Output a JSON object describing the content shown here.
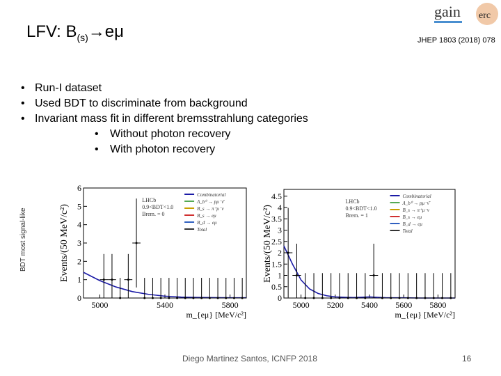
{
  "title": {
    "main": "LFV: B",
    "sub": "(s)",
    "arrow": "→",
    "rest": "eμ"
  },
  "logo": {
    "text_gain": "gain",
    "text_erc": "erc",
    "icon": "gain-erc-logo-icon"
  },
  "reference": "JHEP 1803 (2018) 078",
  "bullets": [
    "Run-I dataset",
    "Used BDT to discriminate from background",
    "Invariant mass fit in different bremsstrahlung categories"
  ],
  "sub_bullets": [
    "Without photon recovery",
    "With photon recovery"
  ],
  "side_label": "BDT most signal-like",
  "footer": "Diego Martinez Santos, ICNFP 2018",
  "page_number": "16",
  "chart_data": [
    {
      "type": "line",
      "xlabel": "m_{eμ} [MeV/c²]",
      "ylabel": "Events/(50 MeV/c²)",
      "xlim": [
        4900,
        5900
      ],
      "ylim": [
        0,
        6
      ],
      "xticks": [
        "5000",
        "5400",
        "5800"
      ],
      "yticks": [
        "0",
        "1",
        "2",
        "3",
        "4",
        "5",
        "6"
      ],
      "annotation": [
        "LHCb",
        "0.9<BDT<1.0",
        "Brem. = 0"
      ],
      "legend_entries": [
        "Combinatorial",
        "Λ_b⁰ → pμ⁻ν̄",
        "B_s → π⁺μ⁻ν",
        "B_s → eμ",
        "B_d → eμ",
        "Total"
      ],
      "legend_colors": [
        "#1a1aa6",
        "#55aa55",
        "#c8a000",
        "#d03030",
        "#3060c0",
        "#333333"
      ],
      "legend_position": "top-right",
      "points": {
        "x": [
          5000,
          5050,
          5100,
          5150,
          5200,
          5250,
          5300,
          5350,
          5400,
          5450,
          5500,
          5550,
          5600,
          5650,
          5700,
          5750,
          5800,
          5850
        ],
        "y": [
          1,
          1,
          0,
          1,
          3,
          0,
          0,
          0,
          0,
          0,
          0,
          0,
          0,
          0,
          0,
          0,
          0,
          0
        ]
      },
      "curve": {
        "x": [
          4900,
          5000,
          5100,
          5200,
          5300,
          5400,
          5500,
          5600,
          5700,
          5800,
          5900
        ],
        "y": [
          1.4,
          0.95,
          0.6,
          0.35,
          0.2,
          0.1,
          0.05,
          0.03,
          0.02,
          0.01,
          0.01
        ]
      }
    },
    {
      "type": "line",
      "xlabel": "m_{eμ} [MeV/c²]",
      "ylabel": "Events/(50 MeV/c²)",
      "xlim": [
        4900,
        5900
      ],
      "ylim": [
        0,
        4.8
      ],
      "xticks": [
        "5000",
        "5200",
        "5400",
        "5600",
        "5800"
      ],
      "yticks": [
        "0",
        "0.5",
        "1",
        "1.5",
        "2",
        "2.5",
        "3",
        "3.5",
        "4",
        "4.5"
      ],
      "annotation": [
        "LHCb",
        "0.9<BDT<1.0",
        "Brem. = 1"
      ],
      "legend_entries": [
        "Combinatorial",
        "Λ_b⁰ → pμ⁻ν̄",
        "B_s → π⁺μ⁻ν",
        "B_s → eμ",
        "B_d → eμ",
        "Total"
      ],
      "legend_colors": [
        "#1a1aa6",
        "#55aa55",
        "#c8a000",
        "#d03030",
        "#3060c0",
        "#333333"
      ],
      "legend_position": "top-right",
      "points": {
        "x": [
          4900,
          4950,
          5000,
          5050,
          5100,
          5150,
          5200,
          5250,
          5300,
          5350,
          5400,
          5450,
          5500,
          5550,
          5600,
          5650,
          5700,
          5750,
          5800,
          5850
        ],
        "y": [
          2,
          1,
          0,
          0,
          0,
          0,
          0,
          0,
          0,
          0,
          1,
          0,
          0,
          0,
          0,
          0,
          0,
          0,
          0,
          0
        ]
      },
      "curve": {
        "x": [
          4900,
          4950,
          5000,
          5050,
          5100,
          5150,
          5200,
          5300,
          5400,
          5500,
          5600,
          5700,
          5800,
          5900
        ],
        "y": [
          2.3,
          1.5,
          0.8,
          0.4,
          0.2,
          0.1,
          0.05,
          0.02,
          0.05,
          0.01,
          0.01,
          0.0,
          0.0,
          0.0
        ]
      }
    }
  ]
}
